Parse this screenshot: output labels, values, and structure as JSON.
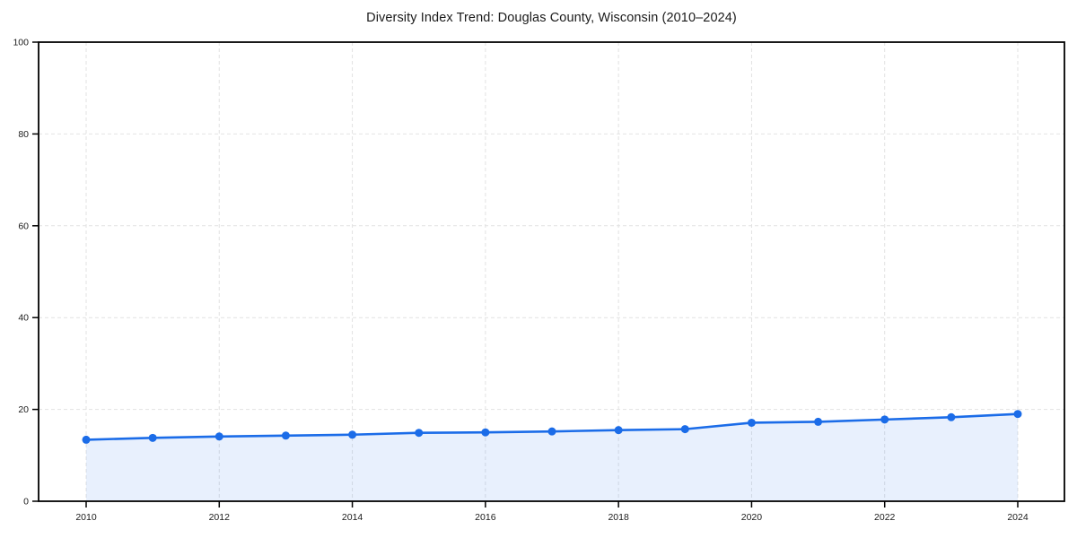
{
  "chart_data": {
    "type": "area",
    "title": "Diversity Index Trend: Douglas County, Wisconsin (2010–2024)",
    "xlabel": "",
    "ylabel": "",
    "x": [
      2010,
      2011,
      2012,
      2013,
      2014,
      2015,
      2016,
      2017,
      2018,
      2019,
      2020,
      2021,
      2022,
      2023,
      2024
    ],
    "series": [
      {
        "name": "Diversity Index",
        "values": [
          13.4,
          13.8,
          14.1,
          14.3,
          14.5,
          14.9,
          15.0,
          15.2,
          15.5,
          15.7,
          17.1,
          17.3,
          17.8,
          18.3,
          19.0
        ]
      }
    ],
    "ylim": [
      0,
      100
    ],
    "y_ticks": [
      0,
      20,
      40,
      60,
      80,
      100
    ],
    "x_ticks": [
      2010,
      2012,
      2014,
      2016,
      2018,
      2020,
      2022,
      2024
    ],
    "grid": "dashed-both-axes",
    "legend": "none",
    "colors": {
      "line": "#1b6ce8",
      "marker": "#1b6ce8",
      "area_fill": "rgba(27,108,232,0.10)",
      "gridline": "#e2e2e2",
      "spine": "#000000",
      "tick_label": "#1a1a1a",
      "background": "#ffffff"
    }
  }
}
